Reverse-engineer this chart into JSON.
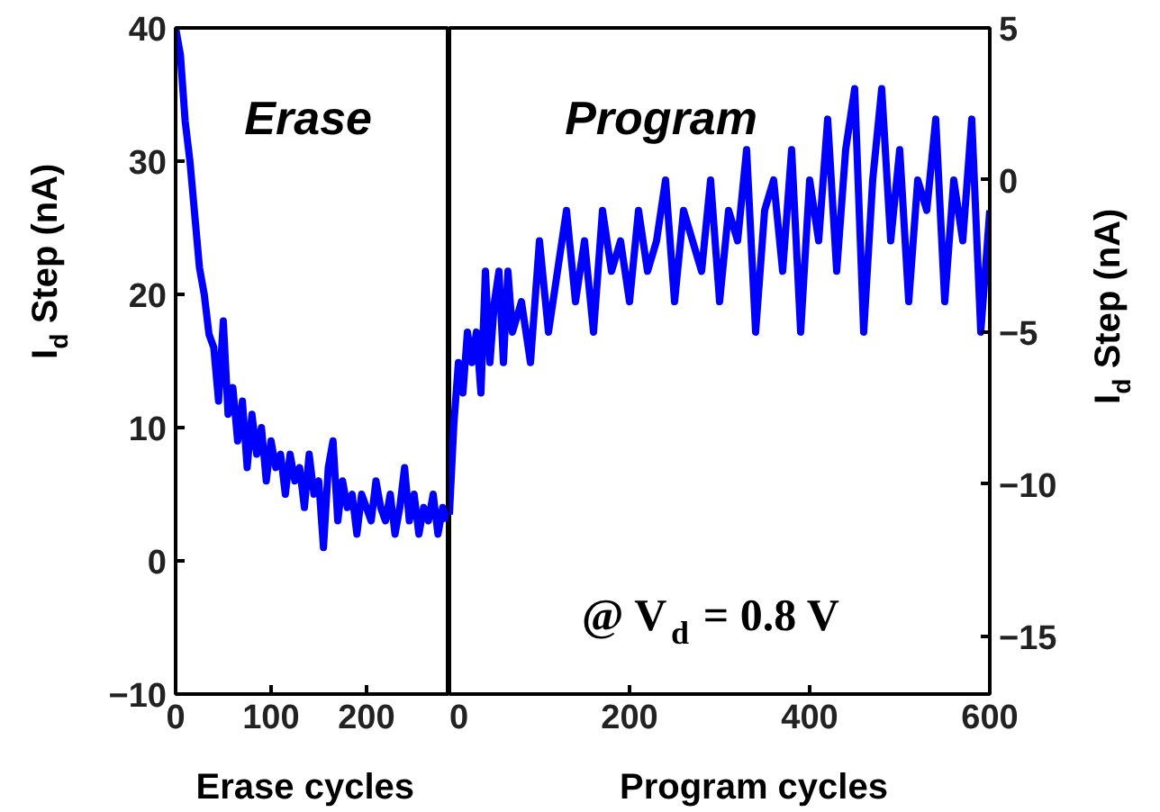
{
  "chart_data": [
    {
      "type": "line",
      "xlabel": "Erase cycles",
      "ylabel": "I$_{d}$ Step (nA)",
      "annotations": [
        "Erase"
      ],
      "xlim": [
        0,
        287
      ],
      "xticks": [
        0,
        100,
        200
      ],
      "ylim": [
        -10,
        40
      ],
      "yticks": [
        -10,
        0,
        10,
        20,
        30,
        40
      ],
      "grid": false,
      "marker": "none",
      "line_style": "solid",
      "series": [
        {
          "color": "#0000ff",
          "x": [
            0,
            5,
            10,
            15,
            20,
            25,
            30,
            35,
            40,
            45,
            50,
            55,
            60,
            65,
            70,
            75,
            80,
            85,
            90,
            95,
            100,
            105,
            110,
            115,
            120,
            125,
            130,
            135,
            140,
            145,
            150,
            155,
            160,
            165,
            170,
            175,
            180,
            185,
            190,
            195,
            200,
            205,
            210,
            215,
            220,
            225,
            230,
            235,
            240,
            245,
            250,
            255,
            260,
            265,
            270,
            275,
            280,
            285
          ],
          "values": [
            40,
            38,
            33,
            30,
            26,
            22,
            20,
            17,
            16,
            12,
            18,
            11,
            13,
            9,
            12,
            7,
            11,
            8,
            10,
            6,
            9,
            7,
            8,
            5,
            8,
            6,
            7,
            4,
            8,
            5,
            6,
            1,
            7,
            9,
            3,
            6,
            4,
            5,
            2,
            5,
            4,
            3,
            6,
            4,
            3,
            5,
            2,
            4,
            7,
            3,
            5,
            2,
            4,
            3,
            5,
            2,
            4,
            3
          ]
        }
      ]
    },
    {
      "type": "line",
      "xlabel": "Program cycles",
      "y2label": "I$_{d}$ Step (nA)",
      "annotations": [
        "Program",
        "@ V$_{d}$ = 0.8 V"
      ],
      "xlim": [
        0,
        600
      ],
      "xticks": [
        0,
        200,
        400,
        600
      ],
      "y2lim": [
        -16.9,
        5
      ],
      "y2ticks": [
        -15,
        -10,
        -5,
        0,
        5
      ],
      "grid": false,
      "marker": "none",
      "line_style": "solid",
      "series": [
        {
          "color": "#0000ff",
          "axis": "y2",
          "x": [
            0,
            5,
            10,
            15,
            20,
            25,
            30,
            35,
            40,
            45,
            50,
            55,
            60,
            65,
            70,
            80,
            90,
            100,
            110,
            120,
            130,
            140,
            150,
            160,
            170,
            180,
            190,
            200,
            210,
            220,
            230,
            240,
            250,
            260,
            270,
            280,
            290,
            300,
            310,
            320,
            330,
            340,
            350,
            360,
            370,
            380,
            390,
            400,
            410,
            420,
            430,
            440,
            450,
            460,
            470,
            480,
            490,
            500,
            510,
            520,
            530,
            540,
            550,
            560,
            570,
            580,
            590,
            600
          ],
          "values": [
            -11,
            -8,
            -6,
            -7,
            -5,
            -6,
            -5,
            -7,
            -3,
            -6,
            -4,
            -3,
            -6,
            -3,
            -5,
            -4,
            -6,
            -2,
            -5,
            -3,
            -1,
            -4,
            -2,
            -5,
            -1,
            -3,
            -2,
            -4,
            -1,
            -3,
            -2,
            0,
            -4,
            -1,
            -2,
            -3,
            0,
            -4,
            -1,
            -2,
            1,
            -5,
            -1,
            0,
            -3,
            1,
            -5,
            0,
            -2,
            2,
            -3,
            1,
            3,
            -5,
            0,
            3,
            -2,
            1,
            -4,
            0,
            -1,
            2,
            -4,
            0,
            -2,
            2,
            -5,
            -1
          ]
        }
      ]
    }
  ]
}
